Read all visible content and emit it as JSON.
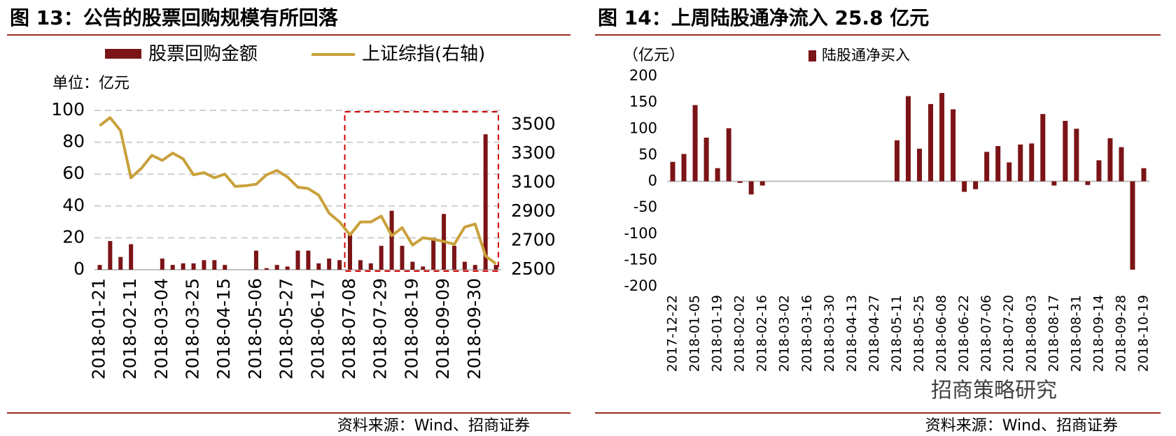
{
  "chart_data": [
    {
      "type": "combo",
      "title": "图 13：公告的股票回购规模有所回落",
      "unit_label": "单位：亿元",
      "source": "资料来源：Wind、招商证券",
      "categories": [
        "2018-01-21",
        null,
        null,
        "2018-02-11",
        null,
        null,
        "2018-03-04",
        null,
        null,
        "2018-03-25",
        null,
        null,
        "2018-04-15",
        null,
        null,
        "2018-05-06",
        null,
        null,
        "2018-05-27",
        null,
        null,
        "2018-06-17",
        null,
        null,
        "2018-07-08",
        null,
        null,
        "2018-07-29",
        null,
        null,
        "2018-08-19",
        null,
        null,
        "2018-09-09",
        null,
        null,
        "2018-09-30",
        null,
        null
      ],
      "series": [
        {
          "name": "股票回购金额",
          "type": "bar",
          "color": "#7b1416",
          "values": [
            3,
            18,
            8,
            16,
            0,
            0,
            7,
            3,
            4,
            4,
            6,
            6,
            3,
            0,
            0,
            12,
            1,
            3,
            2,
            12,
            12,
            4,
            7,
            6,
            22,
            6,
            4,
            15,
            37,
            15,
            5,
            2,
            20,
            35,
            15,
            5,
            3,
            85,
            3
          ]
        },
        {
          "name": "上证综指(右轴)",
          "type": "line",
          "axis": "y2",
          "color": "#c9a13b",
          "values": [
            3495,
            3550,
            3460,
            3135,
            3200,
            3290,
            3255,
            3305,
            3265,
            3155,
            3170,
            3135,
            3160,
            3075,
            3080,
            3090,
            3155,
            3185,
            3140,
            3070,
            3060,
            3015,
            2890,
            2830,
            2740,
            2830,
            2830,
            2870,
            2735,
            2790,
            2670,
            2720,
            2710,
            2695,
            2675,
            2795,
            2815,
            2595,
            2540
          ]
        }
      ],
      "ylim": [
        0,
        100
      ],
      "yticks": [
        0,
        20,
        40,
        60,
        80,
        100
      ],
      "y2lim": [
        2500,
        3600
      ],
      "y2ticks": [
        2500,
        2700,
        2900,
        3100,
        3300,
        3500
      ],
      "grid": true
    },
    {
      "type": "bar",
      "title": "图 14：上周陆股通净流入 25.8 亿元",
      "unit_label": "（亿元）",
      "source": "资料来源：Wind、招商证券",
      "watermark": "招商策略研究",
      "categories": [
        "2017-12-22",
        null,
        "2018-01-05",
        null,
        "2018-01-19",
        null,
        "2018-02-02",
        null,
        "2018-02-16",
        null,
        "2018-03-02",
        null,
        "2018-03-16",
        null,
        "2018-03-30",
        null,
        "2018-04-13",
        null,
        "2018-04-27",
        null,
        "2018-05-11",
        null,
        "2018-05-25",
        null,
        "2018-06-08",
        null,
        "2018-06-22",
        null,
        "2018-07-06",
        null,
        "2018-07-20",
        null,
        "2018-08-03",
        null,
        "2018-08-17",
        null,
        "2018-08-31",
        null,
        "2018-09-14",
        null,
        "2018-09-28",
        null,
        "2018-10-19"
      ],
      "series": [
        {
          "name": "陆股通净买入",
          "type": "bar",
          "color": "#7b1416",
          "values": [
            37,
            52,
            145,
            83,
            25,
            101,
            -3,
            -25,
            -8,
            0,
            0,
            0,
            0,
            0,
            0,
            0,
            0,
            0,
            0,
            0,
            78,
            162,
            62,
            147,
            168,
            137,
            -20,
            -15,
            56,
            67,
            36,
            70,
            72,
            128,
            -8,
            115,
            100,
            -7,
            40,
            82,
            65,
            -168,
            25
          ]
        }
      ],
      "ylim": [
        -200,
        200
      ],
      "yticks": [
        -200,
        -150,
        -100,
        -50,
        0,
        50,
        100,
        150,
        200
      ],
      "grid": false
    }
  ]
}
